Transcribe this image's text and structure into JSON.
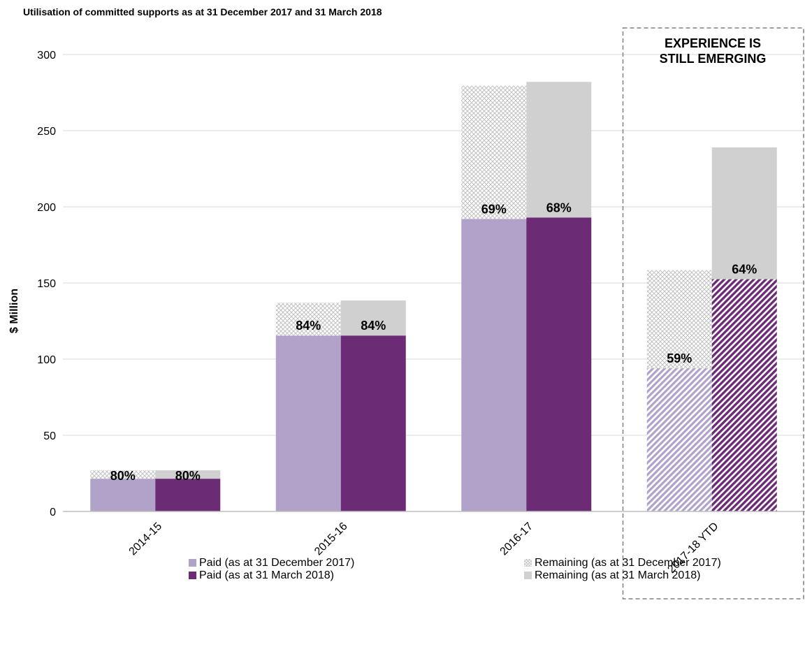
{
  "chart_data": {
    "type": "bar",
    "title": "Utilisation of committed supports as at 31 December 2017 and 31 March 2018",
    "ylabel": "$ Million",
    "xlabel": "",
    "ylim": [
      0,
      300
    ],
    "yticks": [
      0,
      50,
      100,
      150,
      200,
      250,
      300
    ],
    "grid": true,
    "categories": [
      "2014-15",
      "2015-16",
      "2016-17",
      "2017-18 YTD"
    ],
    "stacked": true,
    "series": [
      {
        "name": "Paid (as at 31 December 2017)",
        "stack": "dec",
        "values": [
          21.5,
          115.5,
          192,
          94
        ],
        "color": "#b0a2c8"
      },
      {
        "name": "Remaining (as at 31 December 2017)",
        "stack": "dec",
        "values": [
          5.5,
          21.5,
          87.5,
          64.5
        ],
        "color": "#d9d9d9"
      },
      {
        "name": "Paid (as at 31 March 2018)",
        "stack": "mar",
        "values": [
          21.5,
          115.5,
          193,
          152.5
        ],
        "color": "#6b2c75"
      },
      {
        "name": "Remaining (as at 31 March 2018)",
        "stack": "mar",
        "values": [
          5.5,
          23,
          89,
          86.5
        ],
        "color": "#d0d0d0"
      }
    ],
    "percent_labels": {
      "dec": [
        "80%",
        "84%",
        "69%",
        "59%"
      ],
      "mar": [
        "80%",
        "84%",
        "68%",
        "64%"
      ]
    },
    "annotation": "EXPERIENCE IS\nSTILL EMERGING",
    "annotation_lines": [
      "EXPERIENCE IS",
      "STILL EMERGING"
    ],
    "legend_position": "bottom"
  }
}
